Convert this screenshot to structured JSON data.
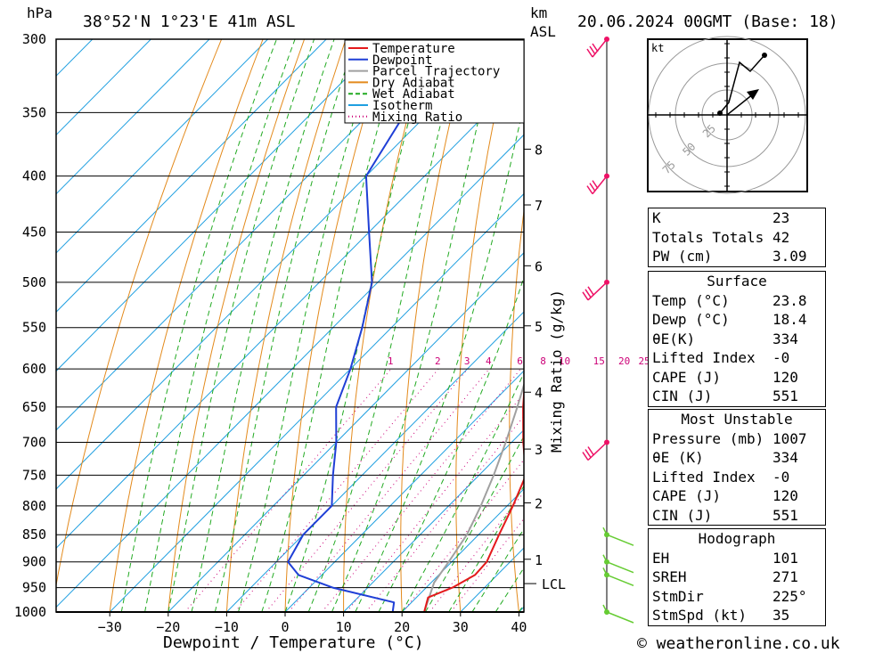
{
  "header": {
    "unit_left": "hPa",
    "location": "38°52'N  1°23'E  41m  ASL",
    "unit_km": "km",
    "unit_asl": "ASL",
    "datetime": "20.06.2024  00GMT  (Base: 18)"
  },
  "footer": {
    "credit": "© weatheronline.co.uk"
  },
  "chart_data": {
    "type": "skew-t",
    "xlabel": "Dewpoint / Temperature (°C)",
    "ylabel_right": "Mixing Ratio (g/kg)",
    "x_ticks": [
      -30,
      -20,
      -10,
      0,
      10,
      20,
      30,
      40
    ],
    "xlim": [
      -40,
      40
    ],
    "pressure_levels": [
      300,
      350,
      400,
      450,
      500,
      550,
      600,
      650,
      700,
      750,
      800,
      850,
      900,
      950,
      1000
    ],
    "ylim": [
      300,
      1000
    ],
    "legend": [
      {
        "name": "Temperature",
        "color": "#e41a1c"
      },
      {
        "name": "Dewpoint",
        "color": "#1f3fd6"
      },
      {
        "name": "Parcel Trajectory",
        "color": "#a0a0a0"
      },
      {
        "name": "Dry Adiabat",
        "color": "#e38a1c"
      },
      {
        "name": "Wet Adiabat",
        "color": "#22aa22"
      },
      {
        "name": "Isotherm",
        "color": "#1f9fe0"
      },
      {
        "name": "Mixing Ratio",
        "color": "#cc0077"
      }
    ],
    "temperature": [
      [
        1000,
        23.8
      ],
      [
        970,
        22
      ],
      [
        950,
        24.5
      ],
      [
        925,
        26.2
      ],
      [
        900,
        26
      ],
      [
        850,
        23.5
      ],
      [
        800,
        21
      ],
      [
        750,
        18
      ],
      [
        700,
        12
      ],
      [
        650,
        6
      ],
      [
        600,
        0
      ],
      [
        550,
        -5.5
      ],
      [
        500,
        -11.5
      ],
      [
        450,
        -18
      ],
      [
        400,
        -24
      ],
      [
        350,
        -32
      ],
      [
        300,
        -42
      ]
    ],
    "dewpoint": [
      [
        1000,
        18.4
      ],
      [
        980,
        17
      ],
      [
        950,
        4
      ],
      [
        925,
        -4
      ],
      [
        900,
        -8
      ],
      [
        850,
        -10
      ],
      [
        800,
        -10
      ],
      [
        750,
        -15
      ],
      [
        700,
        -20
      ],
      [
        650,
        -26
      ],
      [
        600,
        -30
      ],
      [
        550,
        -35
      ],
      [
        500,
        -41
      ],
      [
        450,
        -50
      ],
      [
        400,
        -60
      ],
      [
        350,
        -64
      ],
      [
        300,
        -72
      ]
    ],
    "parcel": [
      [
        1000,
        23.8
      ],
      [
        940,
        20.5
      ],
      [
        900,
        19.5
      ],
      [
        850,
        18
      ],
      [
        800,
        15.5
      ],
      [
        750,
        12.5
      ],
      [
        700,
        9
      ],
      [
        650,
        5
      ],
      [
        600,
        0.5
      ],
      [
        550,
        -4.5
      ],
      [
        500,
        -10
      ],
      [
        450,
        -16.5
      ],
      [
        400,
        -23.5
      ],
      [
        350,
        -32
      ],
      [
        300,
        -41
      ]
    ],
    "km_labels": [
      8,
      7,
      6,
      5,
      4,
      3,
      2,
      1
    ],
    "km_pressure": [
      378,
      425,
      483,
      548,
      630,
      710,
      795,
      895
    ],
    "lcl_label": "LCL",
    "lcl_pressure": 942,
    "mixing_ratio_labels": [
      "1",
      "2",
      "3",
      "4",
      "6",
      "8",
      "10",
      "15",
      "20",
      "25"
    ],
    "mixing_ratio_values": [
      1,
      2,
      3,
      4,
      6,
      8,
      10,
      15,
      20,
      25
    ],
    "wind_pressures": [
      300,
      400,
      500,
      700,
      850,
      900,
      925,
      1000
    ]
  },
  "hodograph": {
    "unit": "kt",
    "ring_labels": [
      "25",
      "50",
      "75"
    ]
  },
  "indices": [
    {
      "label": "K",
      "value": "23"
    },
    {
      "label": "Totals Totals",
      "value": "42"
    },
    {
      "label": "PW (cm)",
      "value": "3.09"
    }
  ],
  "surface": {
    "title": "Surface",
    "rows": [
      {
        "label": "Temp (°C)",
        "value": "23.8"
      },
      {
        "label": "Dewp (°C)",
        "value": "18.4"
      },
      {
        "label": "θE(K)",
        "value": "334"
      },
      {
        "label": "Lifted Index",
        "value": "-0"
      },
      {
        "label": "CAPE (J)",
        "value": "120"
      },
      {
        "label": "CIN (J)",
        "value": "551"
      }
    ]
  },
  "most_unstable": {
    "title": "Most Unstable",
    "rows": [
      {
        "label": "Pressure (mb)",
        "value": "1007"
      },
      {
        "label": "θE (K)",
        "value": "334"
      },
      {
        "label": "Lifted Index",
        "value": "-0"
      },
      {
        "label": "CAPE (J)",
        "value": "120"
      },
      {
        "label": "CIN (J)",
        "value": "551"
      }
    ]
  },
  "hodo_table": {
    "title": "Hodograph",
    "rows": [
      {
        "label": "EH",
        "value": "101"
      },
      {
        "label": "SREH",
        "value": "271"
      },
      {
        "label": "StmDir",
        "value": "225°"
      },
      {
        "label": "StmSpd (kt)",
        "value": "35"
      }
    ]
  }
}
